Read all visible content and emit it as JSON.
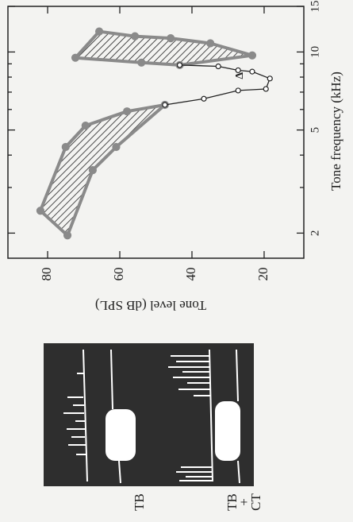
{
  "chart_data": {
    "type": "line",
    "xlabel": "Tone frequency (kHz)",
    "ylabel": "Tone level (dB SPL)",
    "xscale": "log",
    "xlim": [
      1.6,
      15
    ],
    "ylim": [
      9,
      91
    ],
    "xticks": [
      2,
      5,
      10,
      15
    ],
    "xminor": [
      3,
      4,
      6,
      7,
      8,
      9
    ],
    "yticks": [
      20,
      40,
      60,
      80
    ],
    "series": [
      {
        "x": [
          2.44,
          4.3,
          5.2,
          5.9,
          6.25,
          4.3,
          3.5,
          1.96
        ],
        "values": [
          82,
          75,
          69.5,
          58,
          47.5,
          61,
          67.5,
          74.5
        ],
        "color": "#8a8a8a",
        "marker": "filled",
        "closed": true,
        "hatch": true
      },
      {
        "x": [
          12.0,
          11.5,
          11.3,
          10.8,
          9.7,
          8.9,
          9.1,
          9.5
        ],
        "values": [
          65.7,
          55.8,
          45.9,
          34.9,
          23.3,
          43.4,
          54,
          72.3
        ],
        "color": "#8a8a8a",
        "marker": "filled",
        "closed": true,
        "hatch": true
      },
      {
        "x": [
          6.25,
          6.6,
          7.1,
          7.2,
          7.9,
          8.4,
          8.5,
          8.8,
          8.9
        ],
        "values": [
          47.5,
          36.7,
          27.2,
          19.5,
          18.4,
          23.3,
          27.2,
          32.7,
          43.4
        ],
        "color": "#222222",
        "marker": "open",
        "closed": false,
        "hatch": false
      }
    ],
    "annotation": {
      "text": "Δ",
      "x": 8.1,
      "y": 26.6
    }
  },
  "scope": {
    "labels": [
      [
        "TB"
      ],
      [
        "TB",
        "+",
        "CT"
      ]
    ]
  }
}
